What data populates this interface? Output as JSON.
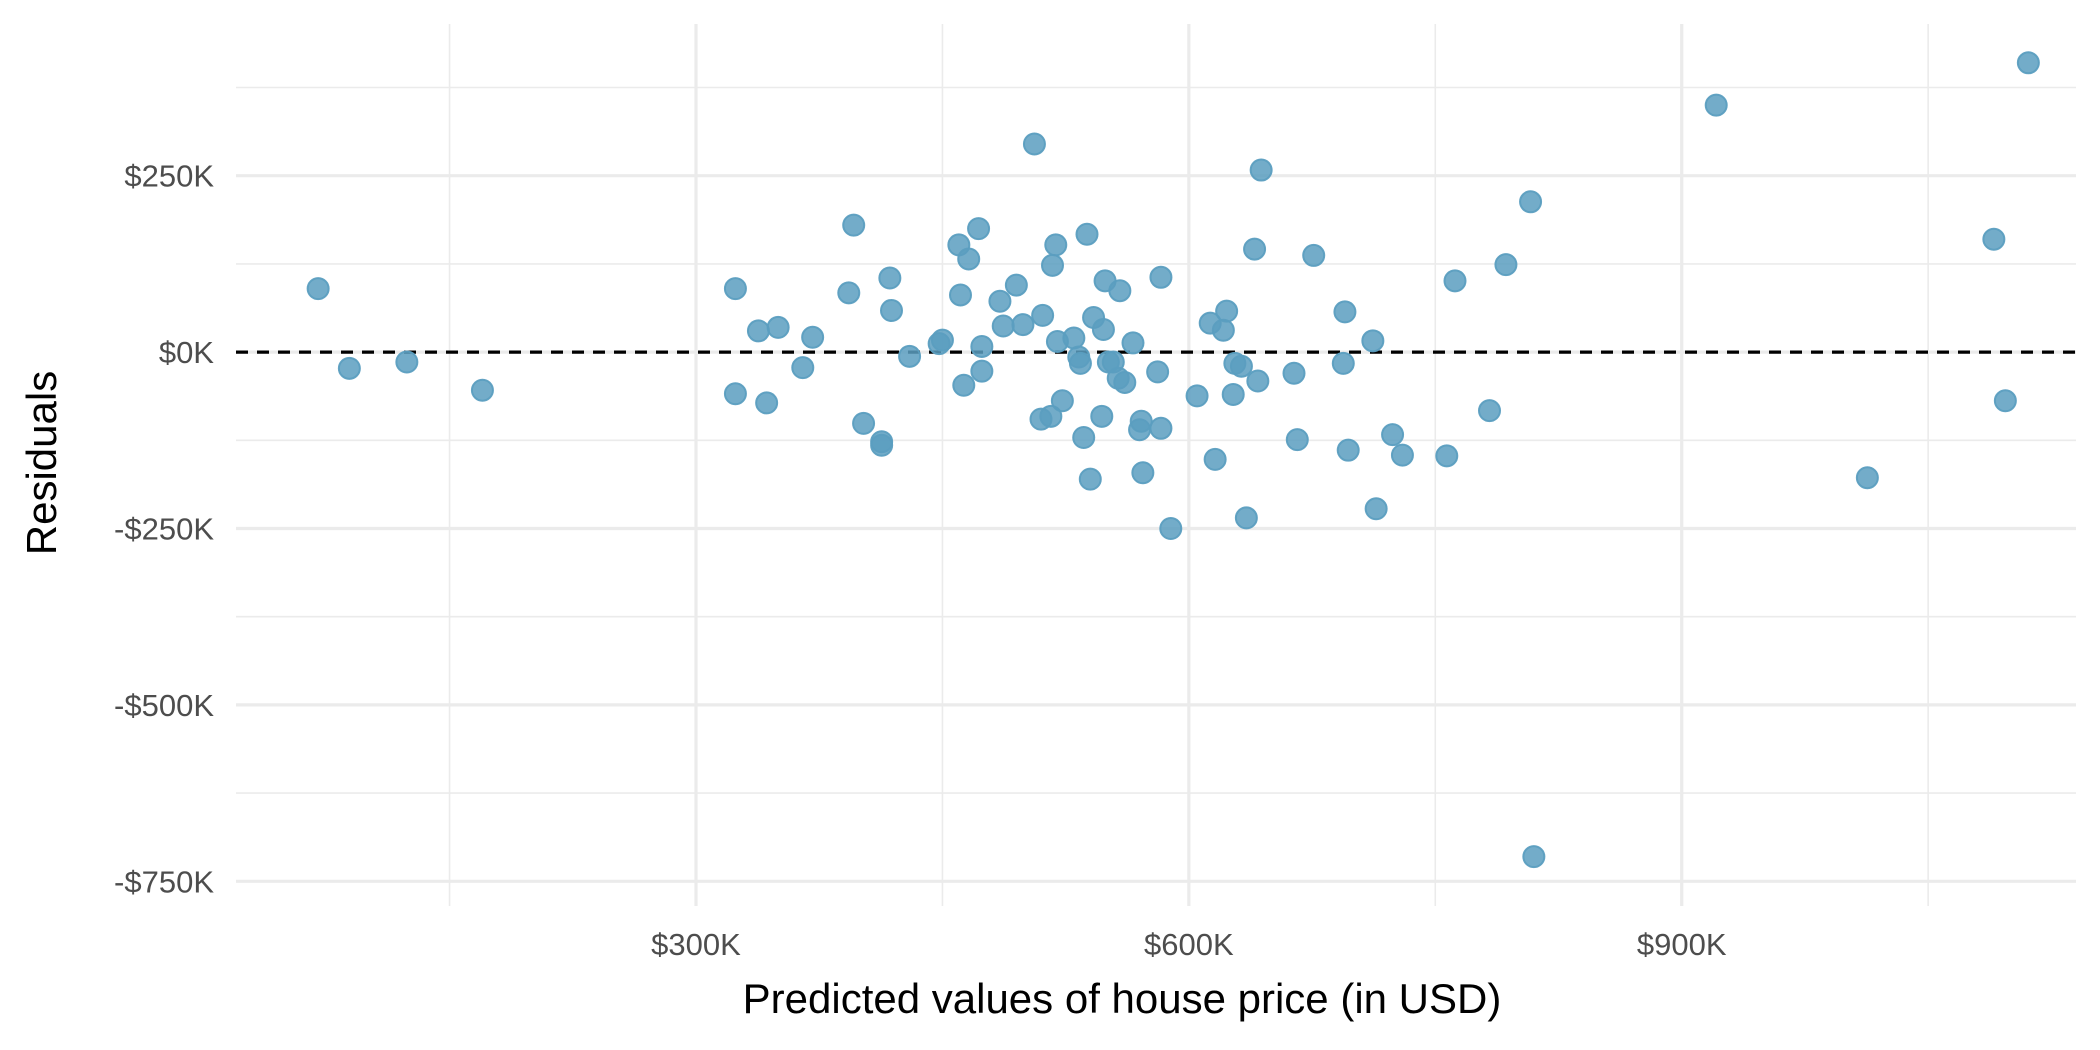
{
  "chart_data": {
    "type": "scatter",
    "title": "",
    "xlabel": "Predicted values of house price (in USD)",
    "ylabel": "Residuals",
    "xlim": [
      20000,
      1140000
    ],
    "ylim": [
      -785000,
      465000
    ],
    "x_ticks": [
      {
        "value": 300000,
        "label": "$300K"
      },
      {
        "value": 600000,
        "label": "$600K"
      },
      {
        "value": 900000,
        "label": "$900K"
      }
    ],
    "x_minor_ticks": [
      150000,
      450000,
      750000,
      1050000
    ],
    "y_ticks": [
      {
        "value": 250000,
        "label": "$250K"
      },
      {
        "value": 0,
        "label": "$0K"
      },
      {
        "value": -250000,
        "label": "-$250K"
      },
      {
        "value": -500000,
        "label": "-$500K"
      },
      {
        "value": -750000,
        "label": "-$750K"
      }
    ],
    "y_minor_ticks": [
      375000,
      125000,
      -125000,
      -375000,
      -625000
    ],
    "reference_line": {
      "y": 0,
      "style": "dashed",
      "color": "#000000"
    },
    "grid": true,
    "legend": "none",
    "point_color": "#5b9ec0",
    "points": [
      {
        "x": 70000,
        "y": 90000
      },
      {
        "x": 89000,
        "y": -23000
      },
      {
        "x": 124000,
        "y": -14000
      },
      {
        "x": 170000,
        "y": -54000
      },
      {
        "x": 324000,
        "y": 90000
      },
      {
        "x": 324000,
        "y": -59000
      },
      {
        "x": 338000,
        "y": 30000
      },
      {
        "x": 343000,
        "y": -72000
      },
      {
        "x": 350000,
        "y": 35000
      },
      {
        "x": 365000,
        "y": -22000
      },
      {
        "x": 371000,
        "y": 21000
      },
      {
        "x": 393000,
        "y": 84000
      },
      {
        "x": 396000,
        "y": 180000
      },
      {
        "x": 402000,
        "y": -101000
      },
      {
        "x": 413000,
        "y": -127000
      },
      {
        "x": 413000,
        "y": -132000
      },
      {
        "x": 418000,
        "y": 105000
      },
      {
        "x": 419000,
        "y": 59000
      },
      {
        "x": 430000,
        "y": -6000
      },
      {
        "x": 448000,
        "y": 12000
      },
      {
        "x": 450000,
        "y": 17000
      },
      {
        "x": 460000,
        "y": 152000
      },
      {
        "x": 461000,
        "y": 81000
      },
      {
        "x": 463000,
        "y": -47000
      },
      {
        "x": 466000,
        "y": 132000
      },
      {
        "x": 472000,
        "y": 175000
      },
      {
        "x": 474000,
        "y": 8000
      },
      {
        "x": 474000,
        "y": -27000
      },
      {
        "x": 485000,
        "y": 72000
      },
      {
        "x": 487000,
        "y": 37000
      },
      {
        "x": 495000,
        "y": 95000
      },
      {
        "x": 499000,
        "y": 39000
      },
      {
        "x": 506000,
        "y": 295000
      },
      {
        "x": 510000,
        "y": -95000
      },
      {
        "x": 511000,
        "y": 52000
      },
      {
        "x": 516000,
        "y": -91000
      },
      {
        "x": 517000,
        "y": 123000
      },
      {
        "x": 519000,
        "y": 152000
      },
      {
        "x": 520000,
        "y": 15000
      },
      {
        "x": 523000,
        "y": -69000
      },
      {
        "x": 530000,
        "y": 20000
      },
      {
        "x": 533000,
        "y": -7000
      },
      {
        "x": 534000,
        "y": -16000
      },
      {
        "x": 536000,
        "y": -121000
      },
      {
        "x": 538000,
        "y": 167000
      },
      {
        "x": 540000,
        "y": -180000
      },
      {
        "x": 542000,
        "y": 49000
      },
      {
        "x": 547000,
        "y": -91000
      },
      {
        "x": 548000,
        "y": 32000
      },
      {
        "x": 549000,
        "y": 101000
      },
      {
        "x": 551000,
        "y": -14000
      },
      {
        "x": 554000,
        "y": -14000
      },
      {
        "x": 557000,
        "y": -37000
      },
      {
        "x": 558000,
        "y": 87000
      },
      {
        "x": 561000,
        "y": -43000
      },
      {
        "x": 566000,
        "y": 13000
      },
      {
        "x": 570000,
        "y": -110000
      },
      {
        "x": 571000,
        "y": -98000
      },
      {
        "x": 572000,
        "y": -171000
      },
      {
        "x": 581000,
        "y": -28000
      },
      {
        "x": 583000,
        "y": 106000
      },
      {
        "x": 583000,
        "y": -108000
      },
      {
        "x": 589000,
        "y": -250000
      },
      {
        "x": 605000,
        "y": -62000
      },
      {
        "x": 613000,
        "y": 41000
      },
      {
        "x": 616000,
        "y": -152000
      },
      {
        "x": 621000,
        "y": 31000
      },
      {
        "x": 623000,
        "y": 58000
      },
      {
        "x": 627000,
        "y": -60000
      },
      {
        "x": 628000,
        "y": -16000
      },
      {
        "x": 632000,
        "y": -20000
      },
      {
        "x": 635000,
        "y": -235000
      },
      {
        "x": 640000,
        "y": 146000
      },
      {
        "x": 642000,
        "y": -41000
      },
      {
        "x": 644000,
        "y": 258000
      },
      {
        "x": 664000,
        "y": -30000
      },
      {
        "x": 666000,
        "y": -124000
      },
      {
        "x": 676000,
        "y": 137000
      },
      {
        "x": 694000,
        "y": -16000
      },
      {
        "x": 695000,
        "y": 57000
      },
      {
        "x": 697000,
        "y": -139000
      },
      {
        "x": 712000,
        "y": 16000
      },
      {
        "x": 714000,
        "y": -222000
      },
      {
        "x": 724000,
        "y": -117000
      },
      {
        "x": 730000,
        "y": -146000
      },
      {
        "x": 757000,
        "y": -147000
      },
      {
        "x": 762000,
        "y": 101000
      },
      {
        "x": 783000,
        "y": -83000
      },
      {
        "x": 793000,
        "y": 124000
      },
      {
        "x": 808000,
        "y": 213000
      },
      {
        "x": 810000,
        "y": -715000
      },
      {
        "x": 921000,
        "y": 350000
      },
      {
        "x": 1013000,
        "y": -178000
      },
      {
        "x": 1090000,
        "y": 160000
      },
      {
        "x": 1097000,
        "y": -69000
      },
      {
        "x": 1111000,
        "y": 410000
      }
    ]
  }
}
